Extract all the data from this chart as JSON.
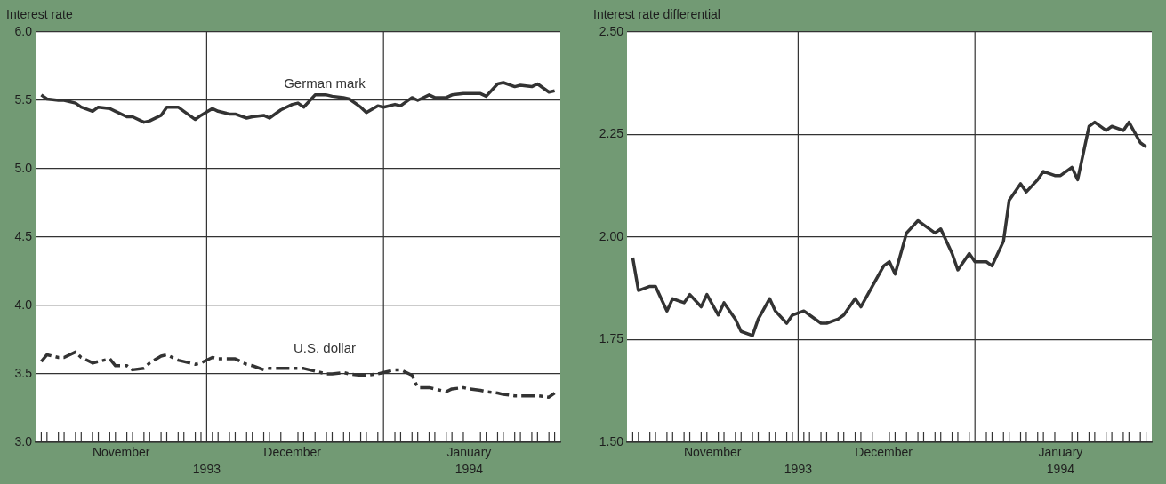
{
  "chart_data": [
    {
      "type": "line",
      "ylabel": "Interest rate",
      "marker": "none",
      "grid": "y",
      "x": [
        "1993-11-02",
        "1993-11-03",
        "1993-11-05",
        "1993-11-06",
        "1993-11-08",
        "1993-11-09",
        "1993-11-11",
        "1993-11-12",
        "1993-11-14",
        "1993-11-15",
        "1993-11-17",
        "1993-11-18",
        "1993-11-20",
        "1993-11-21",
        "1993-11-23",
        "1993-11-24",
        "1993-11-26",
        "1993-11-27",
        "1993-11-29",
        "1993-11-30",
        "1993-12-02",
        "1993-12-03",
        "1993-12-05",
        "1993-12-06",
        "1993-12-08",
        "1993-12-09",
        "1993-12-11",
        "1993-12-12",
        "1993-12-14",
        "1993-12-16",
        "1993-12-17",
        "1993-12-18",
        "1993-12-20",
        "1993-12-22",
        "1993-12-23",
        "1993-12-25",
        "1993-12-26",
        "1993-12-28",
        "1993-12-29",
        "1993-12-31",
        "1994-01-01",
        "1994-01-03",
        "1994-01-04",
        "1994-01-06",
        "1994-01-07",
        "1994-01-09",
        "1994-01-10",
        "1994-01-12",
        "1994-01-13",
        "1994-01-15",
        "1994-01-16",
        "1994-01-18",
        "1994-01-19",
        "1994-01-21",
        "1994-01-22",
        "1994-01-24",
        "1994-01-25",
        "1994-01-27",
        "1994-01-28",
        "1994-01-30",
        "1994-01-31"
      ],
      "xlim": [
        "1993-11-01",
        "1994-02-01"
      ],
      "xticks": [
        {
          "value": "1993-11-16",
          "label": "November"
        },
        {
          "value": "1993-12-16",
          "label": "December"
        },
        {
          "value": "1994-01-16",
          "label": "January"
        },
        {
          "value": "1993-11-02",
          "label": null
        },
        {
          "value": "1993-11-03",
          "label": null
        },
        {
          "value": "1993-11-05",
          "label": null
        },
        {
          "value": "1993-11-06",
          "label": null
        },
        {
          "value": "1993-11-08",
          "label": null
        },
        {
          "value": "1993-11-09",
          "label": null
        },
        {
          "value": "1993-11-11",
          "label": null
        },
        {
          "value": "1993-11-12",
          "label": null
        },
        {
          "value": "1993-11-14",
          "label": null
        },
        {
          "value": "1993-11-15",
          "label": null
        },
        {
          "value": "1993-11-17",
          "label": null
        },
        {
          "value": "1993-11-18",
          "label": null
        },
        {
          "value": "1993-11-20",
          "label": null
        },
        {
          "value": "1993-11-21",
          "label": null
        },
        {
          "value": "1993-11-23",
          "label": null
        },
        {
          "value": "1993-11-24",
          "label": null
        },
        {
          "value": "1993-11-26",
          "label": null
        },
        {
          "value": "1993-11-27",
          "label": null
        },
        {
          "value": "1993-11-29",
          "label": null
        },
        {
          "value": "1993-11-30",
          "label": null
        },
        {
          "value": "1993-12-02",
          "label": null
        },
        {
          "value": "1993-12-03",
          "label": null
        },
        {
          "value": "1993-12-05",
          "label": null
        },
        {
          "value": "1993-12-06",
          "label": null
        },
        {
          "value": "1993-12-08",
          "label": null
        },
        {
          "value": "1993-12-09",
          "label": null
        },
        {
          "value": "1993-12-11",
          "label": null
        },
        {
          "value": "1993-12-12",
          "label": null
        },
        {
          "value": "1993-12-14",
          "label": null
        },
        {
          "value": "1993-12-17",
          "label": null
        },
        {
          "value": "1993-12-18",
          "label": null
        },
        {
          "value": "1993-12-20",
          "label": null
        },
        {
          "value": "1993-12-22",
          "label": null
        },
        {
          "value": "1993-12-23",
          "label": null
        },
        {
          "value": "1993-12-25",
          "label": null
        },
        {
          "value": "1993-12-26",
          "label": null
        },
        {
          "value": "1993-12-28",
          "label": null
        },
        {
          "value": "1993-12-29",
          "label": null
        },
        {
          "value": "1993-12-31",
          "label": null
        },
        {
          "value": "1994-01-03",
          "label": null
        },
        {
          "value": "1994-01-04",
          "label": null
        },
        {
          "value": "1994-01-06",
          "label": null
        },
        {
          "value": "1994-01-07",
          "label": null
        },
        {
          "value": "1994-01-09",
          "label": null
        },
        {
          "value": "1994-01-10",
          "label": null
        },
        {
          "value": "1994-01-12",
          "label": null
        },
        {
          "value": "1994-01-13",
          "label": null
        },
        {
          "value": "1994-01-15",
          "label": null
        },
        {
          "value": "1994-01-18",
          "label": null
        },
        {
          "value": "1994-01-19",
          "label": null
        },
        {
          "value": "1994-01-21",
          "label": null
        },
        {
          "value": "1994-01-22",
          "label": null
        },
        {
          "value": "1994-01-24",
          "label": null
        },
        {
          "value": "1994-01-25",
          "label": null
        },
        {
          "value": "1994-01-27",
          "label": null
        },
        {
          "value": "1994-01-28",
          "label": null
        },
        {
          "value": "1994-01-30",
          "label": null
        },
        {
          "value": "1994-01-31",
          "label": null
        }
      ],
      "annotations": [
        "1993",
        "1994"
      ],
      "ylim": [
        3.0,
        6.0
      ],
      "yticks": [
        {
          "value": 3,
          "label": "3.0"
        },
        {
          "value": 3.5,
          "label": "3.5"
        },
        {
          "value": 4,
          "label": "4.0"
        },
        {
          "value": 4.5,
          "label": "4.5"
        },
        {
          "value": 5,
          "label": "5.0"
        },
        {
          "value": 5.5,
          "label": "5.5"
        },
        {
          "value": 6,
          "label": "6.0"
        }
      ],
      "ref_lines": [
        {
          "axis": "x",
          "value": "1993-12-01",
          "color": "#333333"
        },
        {
          "axis": "x",
          "value": "1994-01-01",
          "color": "#333333"
        }
      ],
      "series": [
        {
          "name": "German mark",
          "color": "#333333",
          "line_style": "solid",
          "values": [
            5.54,
            5.51,
            5.5,
            5.5,
            5.48,
            5.45,
            5.42,
            5.45,
            5.44,
            5.42,
            5.38,
            5.38,
            5.34,
            5.35,
            5.39,
            5.45,
            5.45,
            5.42,
            5.36,
            5.39,
            5.44,
            5.42,
            5.4,
            5.4,
            5.37,
            5.38,
            5.39,
            5.37,
            5.43,
            5.47,
            5.48,
            5.45,
            5.54,
            5.54,
            5.53,
            5.52,
            5.51,
            5.45,
            5.41,
            5.46,
            5.45,
            5.47,
            5.46,
            5.52,
            5.5,
            5.54,
            5.52,
            5.52,
            5.54,
            5.55,
            5.55,
            5.55,
            5.53,
            5.62,
            5.63,
            5.6,
            5.61,
            5.6,
            5.62,
            5.56,
            5.57
          ]
        },
        {
          "name": "U.S. dollar",
          "color": "#333333",
          "line_style": "dashed",
          "values": [
            3.59,
            3.64,
            3.62,
            3.62,
            3.66,
            3.62,
            3.58,
            3.59,
            3.61,
            3.56,
            3.56,
            3.53,
            3.54,
            3.58,
            3.63,
            3.64,
            3.6,
            3.59,
            3.57,
            3.58,
            3.62,
            3.61,
            3.61,
            3.61,
            3.57,
            3.56,
            3.53,
            3.54,
            3.54,
            3.54,
            3.54,
            3.54,
            3.52,
            3.5,
            3.5,
            3.51,
            3.5,
            3.49,
            3.49,
            3.5,
            3.51,
            3.53,
            3.53,
            3.49,
            3.4,
            3.4,
            3.39,
            3.37,
            3.39,
            3.4,
            3.39,
            3.38,
            3.37,
            3.36,
            3.35,
            3.34,
            3.34,
            3.34,
            3.34,
            3.33,
            3.36
          ]
        }
      ]
    },
    {
      "type": "line",
      "ylabel": "Interest rate differential",
      "marker": "none",
      "grid": "y",
      "x": [
        "1993-11-02",
        "1993-11-03",
        "1993-11-05",
        "1993-11-06",
        "1993-11-08",
        "1993-11-09",
        "1993-11-11",
        "1993-11-12",
        "1993-11-14",
        "1993-11-15",
        "1993-11-17",
        "1993-11-18",
        "1993-11-20",
        "1993-11-21",
        "1993-11-23",
        "1993-11-24",
        "1993-11-26",
        "1993-11-27",
        "1993-11-29",
        "1993-11-30",
        "1993-12-02",
        "1993-12-03",
        "1993-12-05",
        "1993-12-06",
        "1993-12-08",
        "1993-12-09",
        "1993-12-11",
        "1993-12-12",
        "1993-12-14",
        "1993-12-16",
        "1993-12-17",
        "1993-12-18",
        "1993-12-20",
        "1993-12-22",
        "1993-12-23",
        "1993-12-25",
        "1993-12-26",
        "1993-12-28",
        "1993-12-29",
        "1993-12-31",
        "1994-01-01",
        "1994-01-03",
        "1994-01-04",
        "1994-01-06",
        "1994-01-07",
        "1994-01-09",
        "1994-01-10",
        "1994-01-12",
        "1994-01-13",
        "1994-01-15",
        "1994-01-16",
        "1994-01-18",
        "1994-01-19",
        "1994-01-21",
        "1994-01-22",
        "1994-01-24",
        "1994-01-25",
        "1994-01-27",
        "1994-01-28",
        "1994-01-30",
        "1994-01-31"
      ],
      "xlim": [
        "1993-11-01",
        "1994-02-01"
      ],
      "xticks": [
        {
          "value": "1993-11-16",
          "label": "November"
        },
        {
          "value": "1993-12-16",
          "label": "December"
        },
        {
          "value": "1994-01-16",
          "label": "January"
        },
        {
          "value": "1993-11-02",
          "label": null
        },
        {
          "value": "1993-11-03",
          "label": null
        },
        {
          "value": "1993-11-05",
          "label": null
        },
        {
          "value": "1993-11-06",
          "label": null
        },
        {
          "value": "1993-11-08",
          "label": null
        },
        {
          "value": "1993-11-09",
          "label": null
        },
        {
          "value": "1993-11-11",
          "label": null
        },
        {
          "value": "1993-11-12",
          "label": null
        },
        {
          "value": "1993-11-14",
          "label": null
        },
        {
          "value": "1993-11-15",
          "label": null
        },
        {
          "value": "1993-11-17",
          "label": null
        },
        {
          "value": "1993-11-18",
          "label": null
        },
        {
          "value": "1993-11-20",
          "label": null
        },
        {
          "value": "1993-11-21",
          "label": null
        },
        {
          "value": "1993-11-23",
          "label": null
        },
        {
          "value": "1993-11-24",
          "label": null
        },
        {
          "value": "1993-11-26",
          "label": null
        },
        {
          "value": "1993-11-27",
          "label": null
        },
        {
          "value": "1993-11-29",
          "label": null
        },
        {
          "value": "1993-11-30",
          "label": null
        },
        {
          "value": "1993-12-02",
          "label": null
        },
        {
          "value": "1993-12-03",
          "label": null
        },
        {
          "value": "1993-12-05",
          "label": null
        },
        {
          "value": "1993-12-06",
          "label": null
        },
        {
          "value": "1993-12-08",
          "label": null
        },
        {
          "value": "1993-12-09",
          "label": null
        },
        {
          "value": "1993-12-11",
          "label": null
        },
        {
          "value": "1993-12-12",
          "label": null
        },
        {
          "value": "1993-12-14",
          "label": null
        },
        {
          "value": "1993-12-17",
          "label": null
        },
        {
          "value": "1993-12-18",
          "label": null
        },
        {
          "value": "1993-12-20",
          "label": null
        },
        {
          "value": "1993-12-22",
          "label": null
        },
        {
          "value": "1993-12-23",
          "label": null
        },
        {
          "value": "1993-12-25",
          "label": null
        },
        {
          "value": "1993-12-26",
          "label": null
        },
        {
          "value": "1993-12-28",
          "label": null
        },
        {
          "value": "1993-12-29",
          "label": null
        },
        {
          "value": "1993-12-31",
          "label": null
        },
        {
          "value": "1994-01-03",
          "label": null
        },
        {
          "value": "1994-01-04",
          "label": null
        },
        {
          "value": "1994-01-06",
          "label": null
        },
        {
          "value": "1994-01-07",
          "label": null
        },
        {
          "value": "1994-01-09",
          "label": null
        },
        {
          "value": "1994-01-10",
          "label": null
        },
        {
          "value": "1994-01-12",
          "label": null
        },
        {
          "value": "1994-01-13",
          "label": null
        },
        {
          "value": "1994-01-15",
          "label": null
        },
        {
          "value": "1994-01-18",
          "label": null
        },
        {
          "value": "1994-01-19",
          "label": null
        },
        {
          "value": "1994-01-21",
          "label": null
        },
        {
          "value": "1994-01-22",
          "label": null
        },
        {
          "value": "1994-01-24",
          "label": null
        },
        {
          "value": "1994-01-25",
          "label": null
        },
        {
          "value": "1994-01-27",
          "label": null
        },
        {
          "value": "1994-01-28",
          "label": null
        },
        {
          "value": "1994-01-30",
          "label": null
        },
        {
          "value": "1994-01-31",
          "label": null
        }
      ],
      "annotations": [
        "1993",
        "1994"
      ],
      "ylim": [
        1.5,
        2.5
      ],
      "yticks": [
        {
          "value": 1.5,
          "label": "1.50"
        },
        {
          "value": 1.75,
          "label": "1.75"
        },
        {
          "value": 2,
          "label": "2.00"
        },
        {
          "value": 2.25,
          "label": "2.25"
        },
        {
          "value": 2.5,
          "label": "2.50"
        }
      ],
      "ref_lines": [
        {
          "axis": "x",
          "value": "1993-12-01",
          "color": "#333333"
        },
        {
          "axis": "x",
          "value": "1994-01-01",
          "color": "#333333"
        }
      ],
      "series": [
        {
          "color": "#333333",
          "line_style": "solid",
          "values": [
            1.95,
            1.87,
            1.88,
            1.88,
            1.82,
            1.85,
            1.84,
            1.86,
            1.83,
            1.86,
            1.81,
            1.84,
            1.8,
            1.77,
            1.76,
            1.8,
            1.85,
            1.82,
            1.79,
            1.81,
            1.82,
            1.81,
            1.79,
            1.79,
            1.8,
            1.81,
            1.85,
            1.83,
            1.88,
            1.93,
            1.94,
            1.91,
            2.01,
            2.04,
            2.03,
            2.01,
            2.02,
            1.96,
            1.92,
            1.96,
            1.94,
            1.94,
            1.93,
            1.99,
            2.09,
            2.13,
            2.11,
            2.14,
            2.16,
            2.15,
            2.15,
            2.17,
            2.14,
            2.27,
            2.28,
            2.26,
            2.27,
            2.26,
            2.28,
            2.23,
            2.22
          ]
        }
      ]
    }
  ]
}
